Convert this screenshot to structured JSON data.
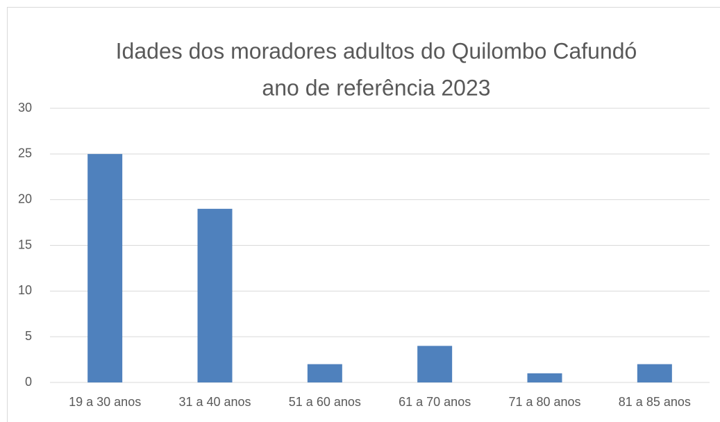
{
  "chart_data": {
    "type": "bar",
    "title": "Idades dos moradores adultos do Quilombo Cafundó",
    "subtitle": "ano de referência 2023",
    "categories": [
      "19 a 30 anos",
      "31 a 40 anos",
      "51 a 60 anos",
      "61 a 70 anos",
      "71 a 80 anos",
      "81 a 85 anos"
    ],
    "values": [
      25,
      19,
      2,
      4,
      1,
      2
    ],
    "color": "#4f81bd",
    "ylim": [
      0,
      30
    ],
    "yticks": [
      0,
      5,
      10,
      15,
      20,
      25,
      30
    ],
    "grid": true
  }
}
